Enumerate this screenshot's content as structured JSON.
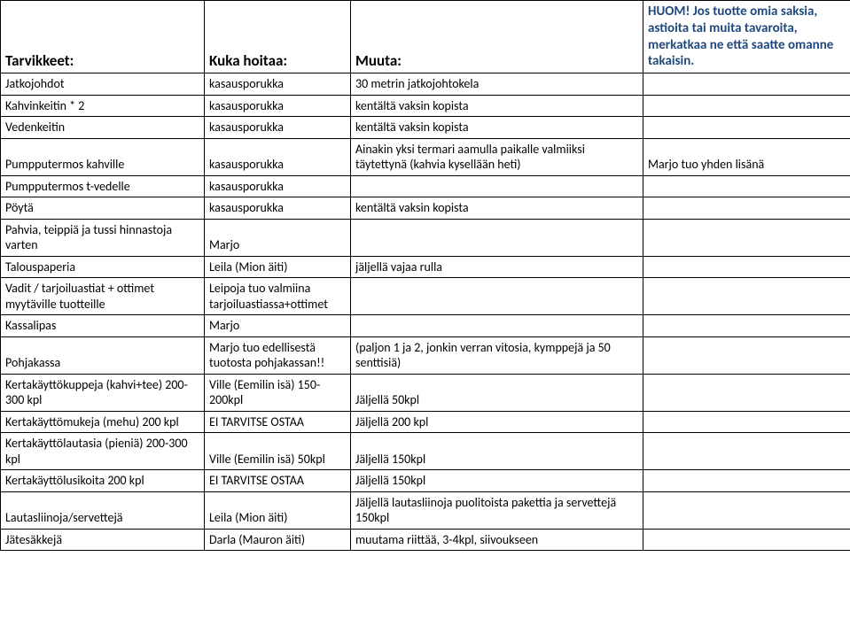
{
  "headers": {
    "c1": "Tarvikkeet:",
    "c2": "Kuka hoitaa:",
    "c3": "Muuta:",
    "c4_note": "HUOM! Jos tuotte omia saksia, astioita tai muita tavaroita, merkatkaa ne että saatte omanne takaisin."
  },
  "rows": [
    {
      "c1": "Jatkojohdot",
      "c2": "kasausporukka",
      "c3": "30 metrin jatkojohtokela",
      "c4": ""
    },
    {
      "c1": "Kahvinkeitin * 2",
      "c2": "kasausporukka",
      "c3": "kentältä vaksin kopista",
      "c4": ""
    },
    {
      "c1": "Vedenkeitin",
      "c2": "kasausporukka",
      "c3": "kentältä vaksin kopista",
      "c4": ""
    },
    {
      "c1": "Pumpputermos kahville",
      "c2": "kasausporukka",
      "c3": "Ainakin yksi termari aamulla paikalle valmiiksi täytettynä (kahvia kysellään heti)",
      "c4": "Marjo tuo yhden lisänä"
    },
    {
      "c1": "Pumpputermos t-vedelle",
      "c2": "kasausporukka",
      "c3": "",
      "c4": ""
    },
    {
      "c1": "Pöytä",
      "c2": "kasausporukka",
      "c3": "kentältä vaksin kopista",
      "c4": ""
    },
    {
      "c1": "Pahvia, teippiä ja tussi hinnastoja varten",
      "c2": "Marjo",
      "c3": "",
      "c4": ""
    },
    {
      "c1": "Talouspaperia",
      "c2": "Leila (Mion äiti)",
      "c3": "jäljellä vajaa rulla",
      "c4": ""
    },
    {
      "c1": "Vadit / tarjoiluastiat + ottimet myytäville tuotteille",
      "c2": "Leipoja tuo valmiina tarjoiluastiassa+ottimet",
      "c3": "",
      "c4": ""
    },
    {
      "c1": "Kassalipas",
      "c2": "Marjo",
      "c3": "",
      "c4": ""
    },
    {
      "c1": "Pohjakassa",
      "c2": "Marjo tuo edellisestä tuotosta pohjakassan!!",
      "c3": " (paljon 1 ja 2, jonkin verran vitosia, kymppejä ja 50 senttisiä)",
      "c4": ""
    },
    {
      "c1": "Kertakäyttökuppeja (kahvi+tee) 200-300 kpl",
      "c2": "Ville (Eemilin isä) 150-200kpl",
      "c3": "Jäljellä 50kpl",
      "c4": ""
    },
    {
      "c1": "Kertakäyttömukeja (mehu) 200 kpl",
      "c2": "EI TARVITSE OSTAA",
      "c3": "Jäljellä 200 kpl",
      "c4": ""
    },
    {
      "c1": "Kertakäyttölautasia (pieniä) 200-300 kpl",
      "c2": "Ville (Eemilin isä) 50kpl",
      "c3": "Jäljellä 150kpl",
      "c4": ""
    },
    {
      "c1": "Kertakäyttölusikoita 200 kpl",
      "c2": "EI TARVITSE OSTAA",
      "c3": "Jäljellä 150kpl",
      "c4": ""
    },
    {
      "c1": "Lautasliinoja/servettejä",
      "c2": "Leila (Mion äiti)",
      "c3": "Jäljellä lautasliinoja puolitoista pakettia ja servettejä 150kpl",
      "c4": ""
    },
    {
      "c1": "Jätesäkkejä",
      "c2": "Darla (Mauron äiti)",
      "c3": "muutama riittää, 3-4kpl, siivoukseen",
      "c4": ""
    }
  ],
  "colors": {
    "note_text": "#1f497d"
  }
}
